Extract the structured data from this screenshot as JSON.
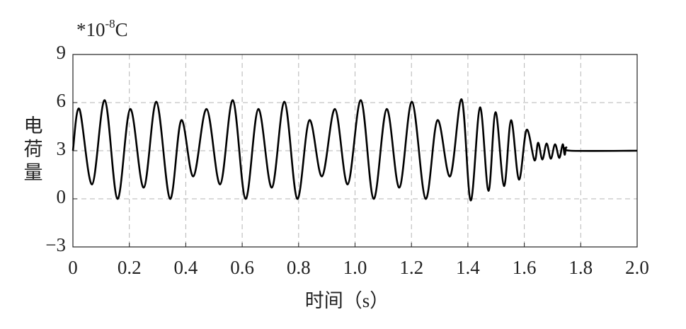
{
  "chart_data": {
    "type": "line",
    "y_unit": {
      "base": "*10",
      "exponent": "-8",
      "unit": "C"
    },
    "y_label": [
      "电",
      "荷",
      "量"
    ],
    "x_label": "时间（s）",
    "xlim": [
      0,
      2
    ],
    "ylim": [
      -3,
      9
    ],
    "xticks": [
      0,
      0.2,
      0.4,
      0.6,
      0.8,
      {
        "value": 1,
        "label": "1.0"
      },
      1.2,
      1.4,
      1.6,
      1.8,
      {
        "value": 2,
        "label": "2.0"
      }
    ],
    "yticks": [
      {
        "value": -3,
        "label": "−3"
      },
      0,
      3,
      6,
      9
    ],
    "grid": true,
    "series": [
      {
        "color": "#000000",
        "x": [
          0,
          0.023,
          0.068,
          0.113,
          0.158,
          0.203,
          0.251,
          0.296,
          0.344,
          0.384,
          0.427,
          0.474,
          0.522,
          0.567,
          0.612,
          0.657,
          0.705,
          0.75,
          0.795,
          0.838,
          0.883,
          0.929,
          0.974,
          1.021,
          1.066,
          1.112,
          1.157,
          1.202,
          1.25,
          1.292,
          1.337,
          1.378,
          1.41,
          1.443,
          1.473,
          1.498,
          1.528,
          1.553,
          1.581,
          1.608,
          1.636,
          1.649,
          1.664,
          1.679,
          1.694,
          1.709,
          1.724,
          1.736,
          1.743,
          1.749,
          1.764,
          2.0
        ],
        "values": [
          3,
          5.6,
          0.9,
          6.15,
          0,
          5.6,
          0.7,
          6.05,
          0,
          4.9,
          1.4,
          5.6,
          0.9,
          6.15,
          0,
          5.6,
          0.7,
          6.05,
          0,
          4.9,
          1.4,
          5.6,
          0.9,
          6.15,
          0,
          5.6,
          0.7,
          6.05,
          0,
          4.9,
          1.4,
          6.2,
          -0.1,
          5.7,
          0.5,
          5.4,
          0.8,
          4.9,
          1.2,
          4.3,
          2.4,
          3.5,
          2.45,
          3.45,
          2.5,
          3.4,
          2.55,
          3.4,
          2.75,
          3.2,
          3,
          3
        ]
      }
    ]
  }
}
